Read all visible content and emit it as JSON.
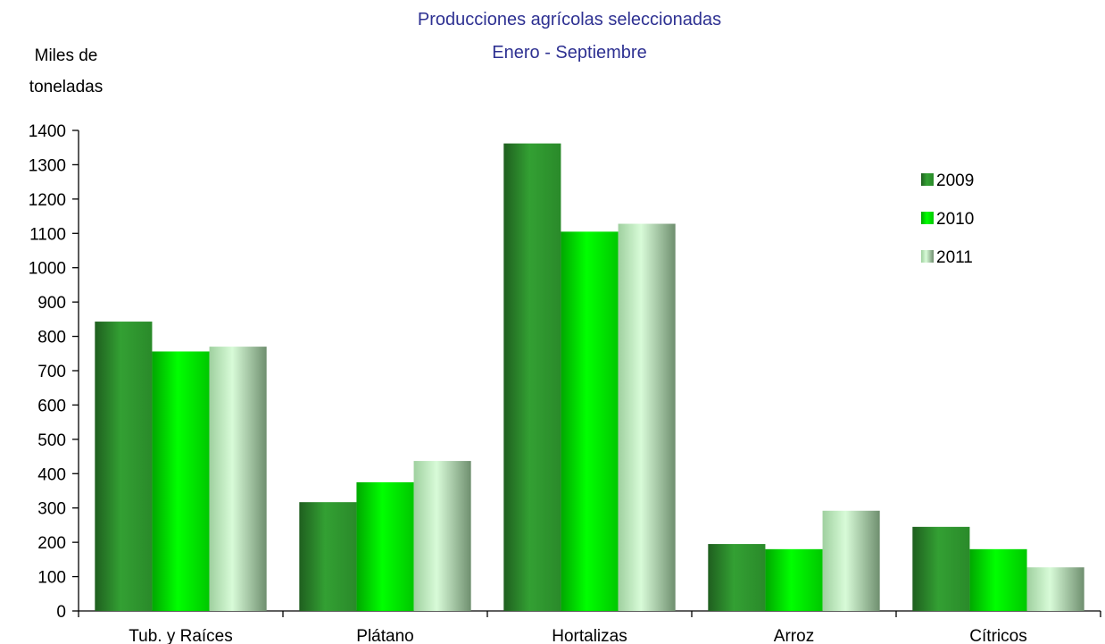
{
  "chart_data": {
    "type": "bar",
    "title": "Producciones agrícolas seleccionadas",
    "subtitle": "Enero - Septiembre",
    "ylabel": [
      "Miles de",
      "toneladas"
    ],
    "xlabel": "",
    "categories": [
      "Tub. y Raíces",
      "Plátano",
      "Hortalizas",
      "Arroz",
      "Cítricos"
    ],
    "series": [
      {
        "name": "2009",
        "values": [
          843,
          317,
          1362,
          195,
          245
        ],
        "color": "#2f8f2f"
      },
      {
        "name": "2010",
        "values": [
          756,
          375,
          1105,
          180,
          180
        ],
        "color": "#00e000"
      },
      {
        "name": "2011",
        "values": [
          770,
          437,
          1128,
          292,
          127
        ],
        "color": "#c8f5c8"
      }
    ],
    "ylim": [
      0,
      1400
    ],
    "yticks": [
      0,
      100,
      200,
      300,
      400,
      500,
      600,
      700,
      800,
      900,
      1000,
      1100,
      1200,
      1300,
      1400
    ],
    "grid": false,
    "legend": "top-right"
  }
}
